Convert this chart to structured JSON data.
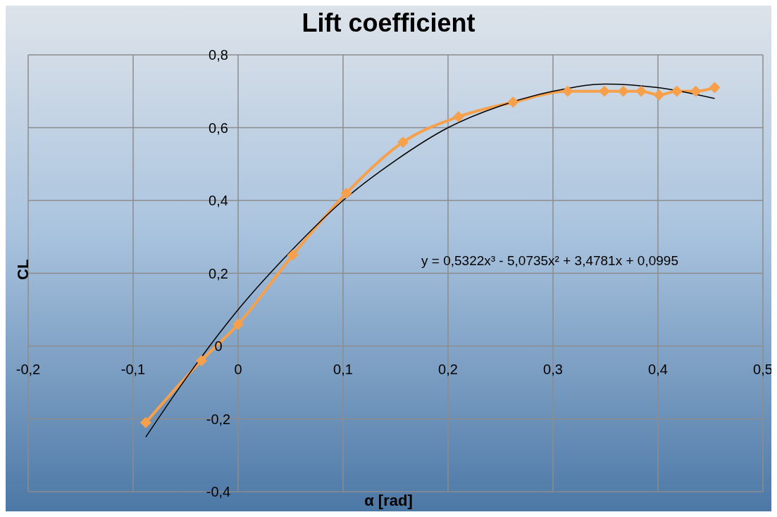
{
  "chart_data": {
    "type": "line",
    "title": "Lift coefficient",
    "xlabel": "α [rad]",
    "ylabel": "CL",
    "series": [
      {
        "color": "#f7a04b",
        "marker": "diamond",
        "x": [
          -0.088,
          -0.035,
          0,
          0.052,
          0.103,
          0.157,
          0.21,
          0.262,
          0.314,
          0.349,
          0.367,
          0.384,
          0.401,
          0.418,
          0.436,
          0.454
        ],
        "values": [
          -0.21,
          -0.04,
          0.06,
          0.25,
          0.42,
          0.56,
          0.63,
          0.67,
          0.7,
          0.7,
          0.7,
          0.7,
          0.69,
          0.7,
          0.7,
          0.71
        ]
      },
      {
        "color": "#000000",
        "marker": "none",
        "x": [
          -0.088,
          -0.05,
          0,
          0.05,
          0.1,
          0.15,
          0.2,
          0.25,
          0.3,
          0.35,
          0.4,
          0.454
        ],
        "values": [
          -0.25,
          -0.09,
          0.1,
          0.26,
          0.4,
          0.51,
          0.6,
          0.66,
          0.7,
          0.72,
          0.71,
          0.68
        ]
      }
    ],
    "annotations": [
      "y = 0,5322x³ - 5,0735x² + 3,4781x + 0,0995"
    ],
    "xlim": [
      -0.2,
      0.5
    ],
    "xticks": [
      {
        "value": -0.2,
        "label": "-0,2"
      },
      {
        "value": -0.1,
        "label": "-0,1"
      },
      0,
      {
        "value": 0.1,
        "label": "0,1"
      },
      {
        "value": 0.2,
        "label": "0,2"
      },
      {
        "value": 0.3,
        "label": "0,3"
      },
      {
        "value": 0.4,
        "label": "0,4"
      },
      {
        "value": 0.5,
        "label": "0,5"
      }
    ],
    "ylim": [
      -0.4,
      0.8
    ],
    "yticks": [
      {
        "value": -0.4,
        "label": "-0,4"
      },
      {
        "value": -0.2,
        "label": "-0,2"
      },
      0,
      {
        "value": 0.2,
        "label": "0,2"
      },
      {
        "value": 0.4,
        "label": "0,4"
      },
      {
        "value": 0.6,
        "label": "0,6"
      },
      {
        "value": 0.8,
        "label": "0,8"
      }
    ],
    "grid": true,
    "line_style": "solid"
  }
}
